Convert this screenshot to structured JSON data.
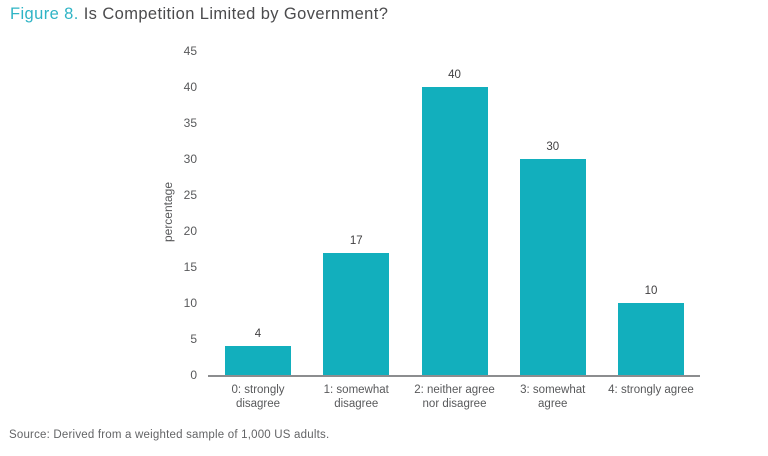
{
  "header": {
    "figure_label": "Figure 8.",
    "title": " Is Competition Limited by Government?"
  },
  "footer": {
    "source": "Source: Derived from a weighted sample of 1,000 US adults."
  },
  "colors": {
    "bar": "#12afbd",
    "accent_teal": "#2fb4c5",
    "title_text": "#4b4b4d",
    "axis_text": "#58595b",
    "axis_line": "#8c8d8f"
  },
  "chart_data": {
    "type": "bar",
    "title": "Figure 8. Is Competition Limited by Government?",
    "categories": [
      "0: strongly disagree",
      "1: somewhat disagree",
      "2: neither agree nor disagree",
      "3: somewhat agree",
      "4: strongly agree"
    ],
    "category_display_lines": [
      "0: strongly\ndisagree",
      "1: somewhat\ndisagree",
      "2: neither agree\nnor disagree",
      "3: somewhat\nagree",
      "4: strongly agree"
    ],
    "values": [
      4,
      17,
      40,
      30,
      10
    ],
    "value_labels": [
      "4",
      "17",
      "40",
      "30",
      "10"
    ],
    "ytick_labels": [
      "0",
      "5",
      "10",
      "15",
      "20",
      "25",
      "30",
      "35",
      "40",
      "45"
    ],
    "xlabel": "",
    "ylabel": "percentage",
    "ylim": [
      0,
      45
    ],
    "ytick_step": 5,
    "grid": false,
    "legend": false,
    "bar_color": "#12afbd"
  }
}
